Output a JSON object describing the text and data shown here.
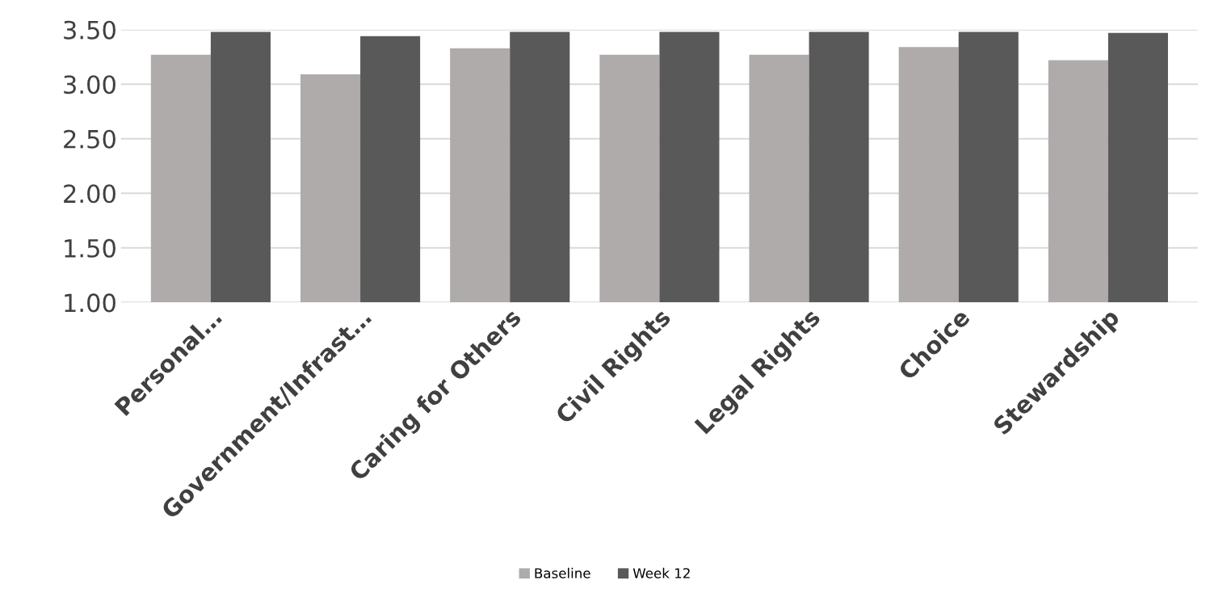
{
  "chart_data": {
    "type": "bar",
    "categories": [
      "Personal…",
      "Government/Infrast…",
      "Caring for Others",
      "Civil Rights",
      "Legal Rights",
      "Choice",
      "Stewardship"
    ],
    "series": [
      {
        "name": "Baseline",
        "color": "#afabab",
        "values": [
          3.27,
          3.09,
          3.33,
          3.27,
          3.27,
          3.34,
          3.22
        ]
      },
      {
        "name": "Week 12",
        "color": "#595959",
        "values": [
          3.48,
          3.44,
          3.48,
          3.48,
          3.48,
          3.48,
          3.47
        ]
      }
    ],
    "ylim": [
      1,
      3.5
    ],
    "yticks": [
      {
        "value": 1,
        "label": "1.00"
      },
      {
        "value": 1.5,
        "label": "1.50"
      },
      {
        "value": 2,
        "label": "2.00"
      },
      {
        "value": 2.5,
        "label": "2.50"
      },
      {
        "value": 3,
        "label": "3.00"
      },
      {
        "value": 3.5,
        "label": "3.50"
      }
    ],
    "grid": "y",
    "legend": "bottom"
  }
}
